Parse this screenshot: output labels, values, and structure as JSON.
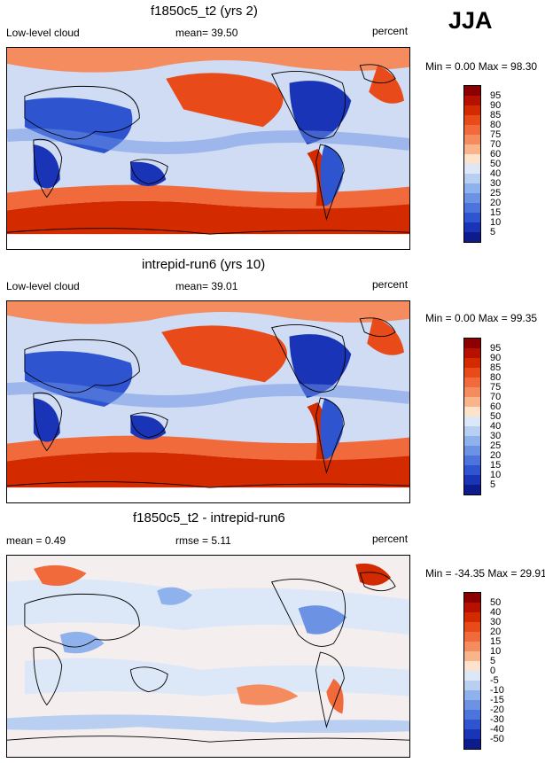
{
  "season": "JJA",
  "panels": [
    {
      "title": "f1850c5_t2 (yrs 2)",
      "left": "Low-level cloud",
      "center": "mean=  39.50",
      "right": "percent",
      "minmax": "Min =   0.00 Max =  98.30",
      "colorbar_labels": [
        "95",
        "90",
        "85",
        "80",
        "75",
        "70",
        "60",
        "50",
        "40",
        "30",
        "25",
        "20",
        "15",
        "10",
        "5"
      ],
      "colorbar_colors": [
        "#8c0000",
        "#b51000",
        "#d42a00",
        "#e94a1a",
        "#f06a3c",
        "#f58c60",
        "#fab48c",
        "#fde2cc",
        "#dce8f8",
        "#b8cff2",
        "#90b2ec",
        "#6c92e4",
        "#4c74dc",
        "#2e54d0",
        "#1a34b8",
        "#0c1c8c"
      ]
    },
    {
      "title": "intrepid-run6 (yrs 10)",
      "left": "Low-level cloud",
      "center": "mean=  39.01",
      "right": "percent",
      "minmax": "Min =   0.00 Max =  99.35",
      "colorbar_labels": [
        "95",
        "90",
        "85",
        "80",
        "75",
        "70",
        "60",
        "50",
        "40",
        "30",
        "25",
        "20",
        "15",
        "10",
        "5"
      ],
      "colorbar_colors": [
        "#8c0000",
        "#b51000",
        "#d42a00",
        "#e94a1a",
        "#f06a3c",
        "#f58c60",
        "#fab48c",
        "#fde2cc",
        "#dce8f8",
        "#b8cff2",
        "#90b2ec",
        "#6c92e4",
        "#4c74dc",
        "#2e54d0",
        "#1a34b8",
        "#0c1c8c"
      ]
    },
    {
      "title": "f1850c5_t2 - intrepid-run6",
      "left": "mean =   0.49",
      "center": "rmse =   5.11",
      "right": "percent",
      "minmax": "Min = -34.35 Max =  29.91",
      "colorbar_labels": [
        "50",
        "40",
        "30",
        "20",
        "15",
        "10",
        "5",
        "0",
        "-5",
        "-10",
        "-15",
        "-20",
        "-30",
        "-40",
        "-50"
      ],
      "colorbar_colors": [
        "#8c0000",
        "#b51000",
        "#d42a00",
        "#e94a1a",
        "#f06a3c",
        "#f58c60",
        "#fab48c",
        "#fde2cc",
        "#dce8f8",
        "#b8cff2",
        "#90b2ec",
        "#6c92e4",
        "#4c74dc",
        "#2e54d0",
        "#1a34b8",
        "#0c1c8c"
      ]
    }
  ],
  "chart_data": [
    {
      "type": "heatmap",
      "title": "f1850c5_t2 (yrs 2)",
      "variable": "Low-level cloud",
      "units": "percent",
      "mean": 39.5,
      "min": 0.0,
      "max": 98.3,
      "levels": [
        5,
        10,
        15,
        20,
        25,
        30,
        40,
        50,
        60,
        70,
        75,
        80,
        85,
        90,
        95
      ]
    },
    {
      "type": "heatmap",
      "title": "intrepid-run6 (yrs 10)",
      "variable": "Low-level cloud",
      "units": "percent",
      "mean": 39.01,
      "min": 0.0,
      "max": 99.35,
      "levels": [
        5,
        10,
        15,
        20,
        25,
        30,
        40,
        50,
        60,
        70,
        75,
        80,
        85,
        90,
        95
      ]
    },
    {
      "type": "heatmap",
      "title": "f1850c5_t2 - intrepid-run6",
      "units": "percent",
      "mean": 0.49,
      "rmse": 5.11,
      "min": -34.35,
      "max": 29.91,
      "levels": [
        -50,
        -40,
        -30,
        -20,
        -15,
        -10,
        -5,
        0,
        5,
        10,
        15,
        20,
        30,
        40,
        50
      ]
    }
  ]
}
